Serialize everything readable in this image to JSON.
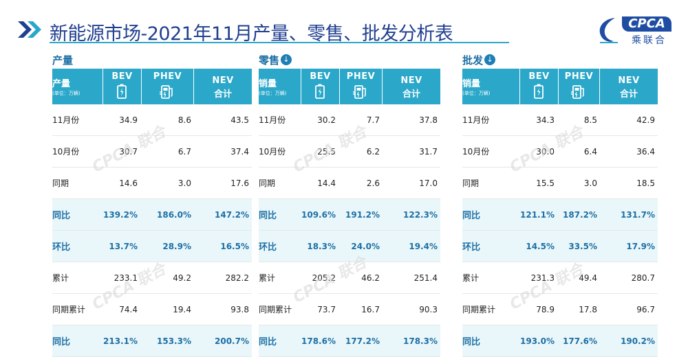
{
  "header": {
    "title": "新能源市场-2021年11月产量、零售、批发分析表",
    "logo_latin": "CPCA",
    "logo_cn": "乘联合"
  },
  "colors": {
    "header_bg": "#2aa7c9",
    "title_text": "#1f3f8f",
    "accent": "#1d6fa5",
    "pct_row_bg": "#eaf7fa"
  },
  "watermark": "CPCA 联合",
  "sections": [
    {
      "heading": "产量",
      "has_icon": false,
      "row_header": "产量",
      "unit": "(单位：万辆)",
      "columns": [
        {
          "name": "BEV",
          "icon": "battery-icon"
        },
        {
          "name": "PHEV",
          "icon": "fuel-pump-plug-icon"
        },
        {
          "name": "NEV",
          "sub": "合计"
        }
      ],
      "rows": [
        {
          "label": "11月份",
          "values": [
            "34.9",
            "8.6",
            "43.5"
          ],
          "pct": false
        },
        {
          "label": "10月份",
          "values": [
            "30.7",
            "6.7",
            "37.4"
          ],
          "pct": false
        },
        {
          "label": "同期",
          "values": [
            "14.6",
            "3.0",
            "17.6"
          ],
          "pct": false
        },
        {
          "label": "同比",
          "values": [
            "139.2%",
            "186.0%",
            "147.2%"
          ],
          "pct": true
        },
        {
          "label": "环比",
          "values": [
            "13.7%",
            "28.9%",
            "16.5%"
          ],
          "pct": true
        },
        {
          "label": "累计",
          "values": [
            "233.1",
            "49.2",
            "282.2"
          ],
          "pct": false
        },
        {
          "label": "同期累计",
          "values": [
            "74.4",
            "19.4",
            "93.8"
          ],
          "pct": false
        },
        {
          "label": "同比",
          "values": [
            "213.1%",
            "153.3%",
            "200.7%"
          ],
          "pct": true
        }
      ]
    },
    {
      "heading": "零售",
      "has_icon": true,
      "row_header": "销量",
      "unit": "(单位：万辆)",
      "columns": [
        {
          "name": "BEV",
          "icon": "battery-icon"
        },
        {
          "name": "PHEV",
          "icon": "fuel-pump-plug-icon"
        },
        {
          "name": "NEV",
          "sub": "合计"
        }
      ],
      "rows": [
        {
          "label": "11月份",
          "values": [
            "30.2",
            "7.7",
            "37.8"
          ],
          "pct": false
        },
        {
          "label": "10月份",
          "values": [
            "25.5",
            "6.2",
            "31.7"
          ],
          "pct": false
        },
        {
          "label": "同期",
          "values": [
            "14.4",
            "2.6",
            "17.0"
          ],
          "pct": false
        },
        {
          "label": "同比",
          "values": [
            "109.6%",
            "191.2%",
            "122.3%"
          ],
          "pct": true
        },
        {
          "label": "环比",
          "values": [
            "18.3%",
            "24.0%",
            "19.4%"
          ],
          "pct": true
        },
        {
          "label": "累计",
          "values": [
            "205.2",
            "46.2",
            "251.4"
          ],
          "pct": false
        },
        {
          "label": "同期累计",
          "values": [
            "73.7",
            "16.7",
            "90.3"
          ],
          "pct": false
        },
        {
          "label": "同比",
          "values": [
            "178.6%",
            "177.2%",
            "178.3%"
          ],
          "pct": true
        }
      ]
    },
    {
      "heading": "批发",
      "has_icon": true,
      "row_header": "销量",
      "unit": "(单位：万辆)",
      "columns": [
        {
          "name": "BEV",
          "icon": "battery-icon"
        },
        {
          "name": "PHEV",
          "icon": "fuel-pump-plug-icon"
        },
        {
          "name": "NEV",
          "sub": "合计"
        }
      ],
      "rows": [
        {
          "label": "11月份",
          "values": [
            "34.3",
            "8.5",
            "42.9"
          ],
          "pct": false
        },
        {
          "label": "10月份",
          "values": [
            "30.0",
            "6.4",
            "36.4"
          ],
          "pct": false
        },
        {
          "label": "同期",
          "values": [
            "15.5",
            "3.0",
            "18.5"
          ],
          "pct": false
        },
        {
          "label": "同比",
          "values": [
            "121.1%",
            "187.2%",
            "131.7%"
          ],
          "pct": true
        },
        {
          "label": "环比",
          "values": [
            "14.5%",
            "33.5%",
            "17.9%"
          ],
          "pct": true
        },
        {
          "label": "累计",
          "values": [
            "231.3",
            "49.4",
            "280.7"
          ],
          "pct": false
        },
        {
          "label": "同期累计",
          "values": [
            "78.9",
            "17.8",
            "96.7"
          ],
          "pct": false
        },
        {
          "label": "同比",
          "values": [
            "193.0%",
            "177.6%",
            "190.2%"
          ],
          "pct": true
        }
      ]
    }
  ]
}
